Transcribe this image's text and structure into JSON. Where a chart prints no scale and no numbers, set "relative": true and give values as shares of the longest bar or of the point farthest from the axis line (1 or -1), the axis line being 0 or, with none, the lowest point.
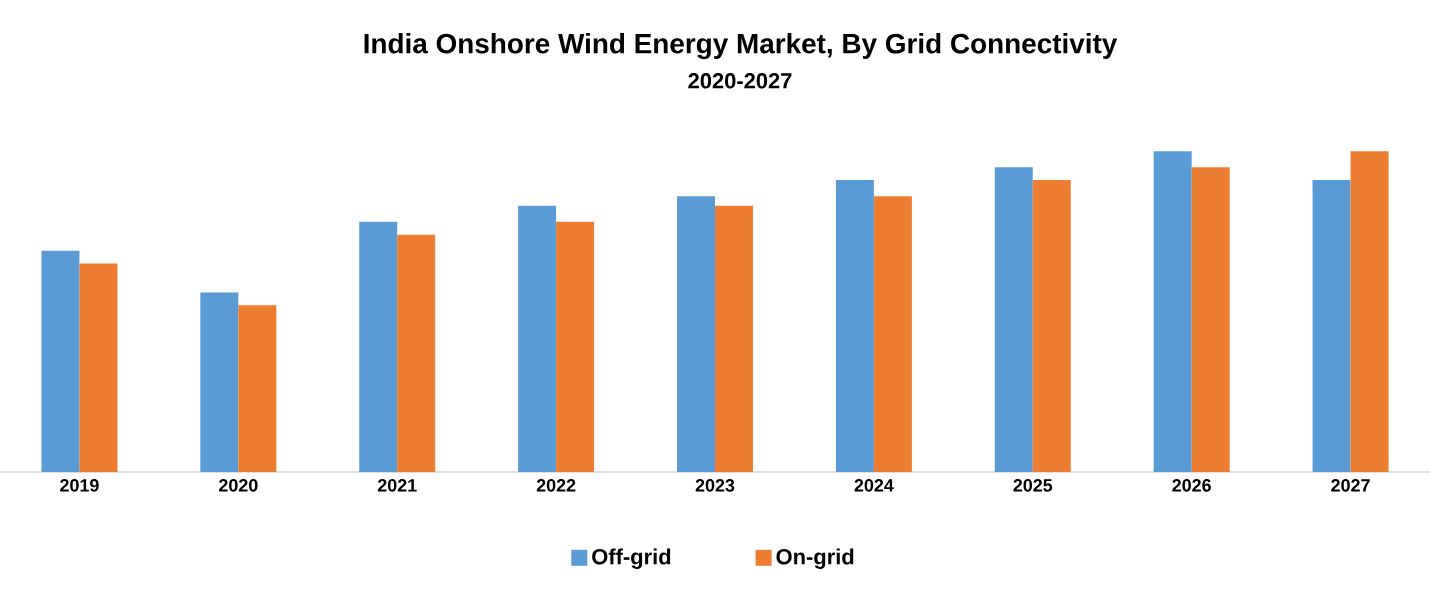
{
  "chart_data": {
    "type": "bar",
    "title": "India Onshore Wind Energy Market, By Grid Connectivity",
    "subtitle": "2020-2027",
    "relative": true,
    "legend": "bottom",
    "categories": [
      "2019",
      "2020",
      "2021",
      "2022",
      "2023",
      "2024",
      "2025",
      "2026",
      "2027"
    ],
    "series": [
      {
        "name": "Off-grid",
        "color": "#5b9bd5",
        "values": [
          0.69,
          0.56,
          0.78,
          0.83,
          0.86,
          0.91,
          0.95,
          1,
          0.91
        ]
      },
      {
        "name": "On-grid",
        "color": "#ed7d31",
        "values": [
          0.65,
          0.52,
          0.74,
          0.78,
          0.83,
          0.86,
          0.91,
          0.95,
          1
        ]
      }
    ]
  }
}
